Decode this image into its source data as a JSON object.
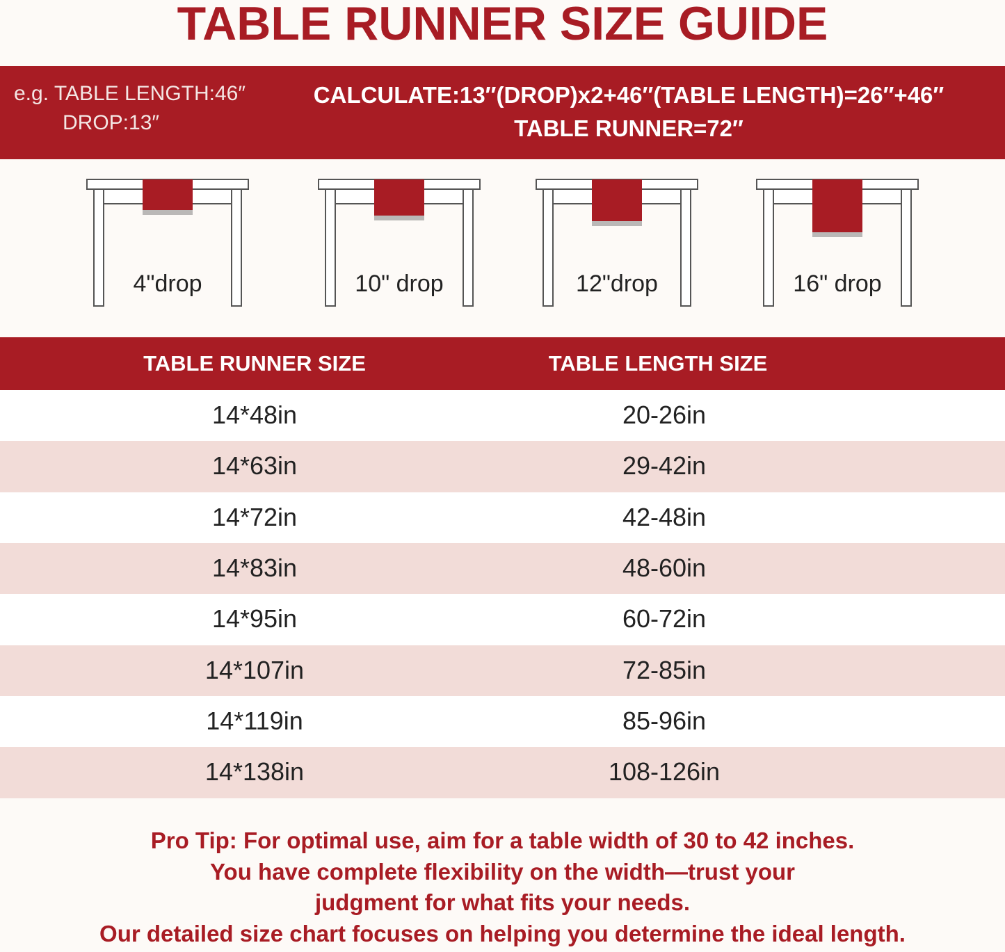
{
  "title": "TABLE RUNNER SIZE GUIDE",
  "example": {
    "lines": [
      "e.g. TABLE LENGTH:46″",
      "DROP:13″"
    ]
  },
  "calculation": {
    "lines": [
      "CALCULATE:13″(DROP)x2+46″(TABLE LENGTH)=26″+46″",
      "TABLE RUNNER=72″"
    ]
  },
  "drops": {
    "labels": [
      "4\"drop",
      "10\" drop",
      "12\"drop",
      "16\" drop"
    ]
  },
  "table": {
    "header": [
      "TABLE RUNNER SIZE",
      "TABLE LENGTH SIZE"
    ],
    "rows": [
      [
        "14*48in",
        "20-26in"
      ],
      [
        "14*63in",
        "29-42in"
      ],
      [
        "14*72in",
        "42-48in"
      ],
      [
        "14*83in",
        "48-60in"
      ],
      [
        "14*95in",
        "60-72in"
      ],
      [
        "14*107in",
        "72-85in"
      ],
      [
        "14*119in",
        "85-96in"
      ],
      [
        "14*138in",
        "108-126in"
      ]
    ]
  },
  "tip": {
    "lines": [
      "Pro Tip: For optimal use, aim for a table width of 30 to 42 inches.",
      "You have complete flexibility on the width—trust your",
      "judgment for what fits your needs.",
      "Our detailed size chart focuses on helping you determine the ideal length."
    ]
  }
}
